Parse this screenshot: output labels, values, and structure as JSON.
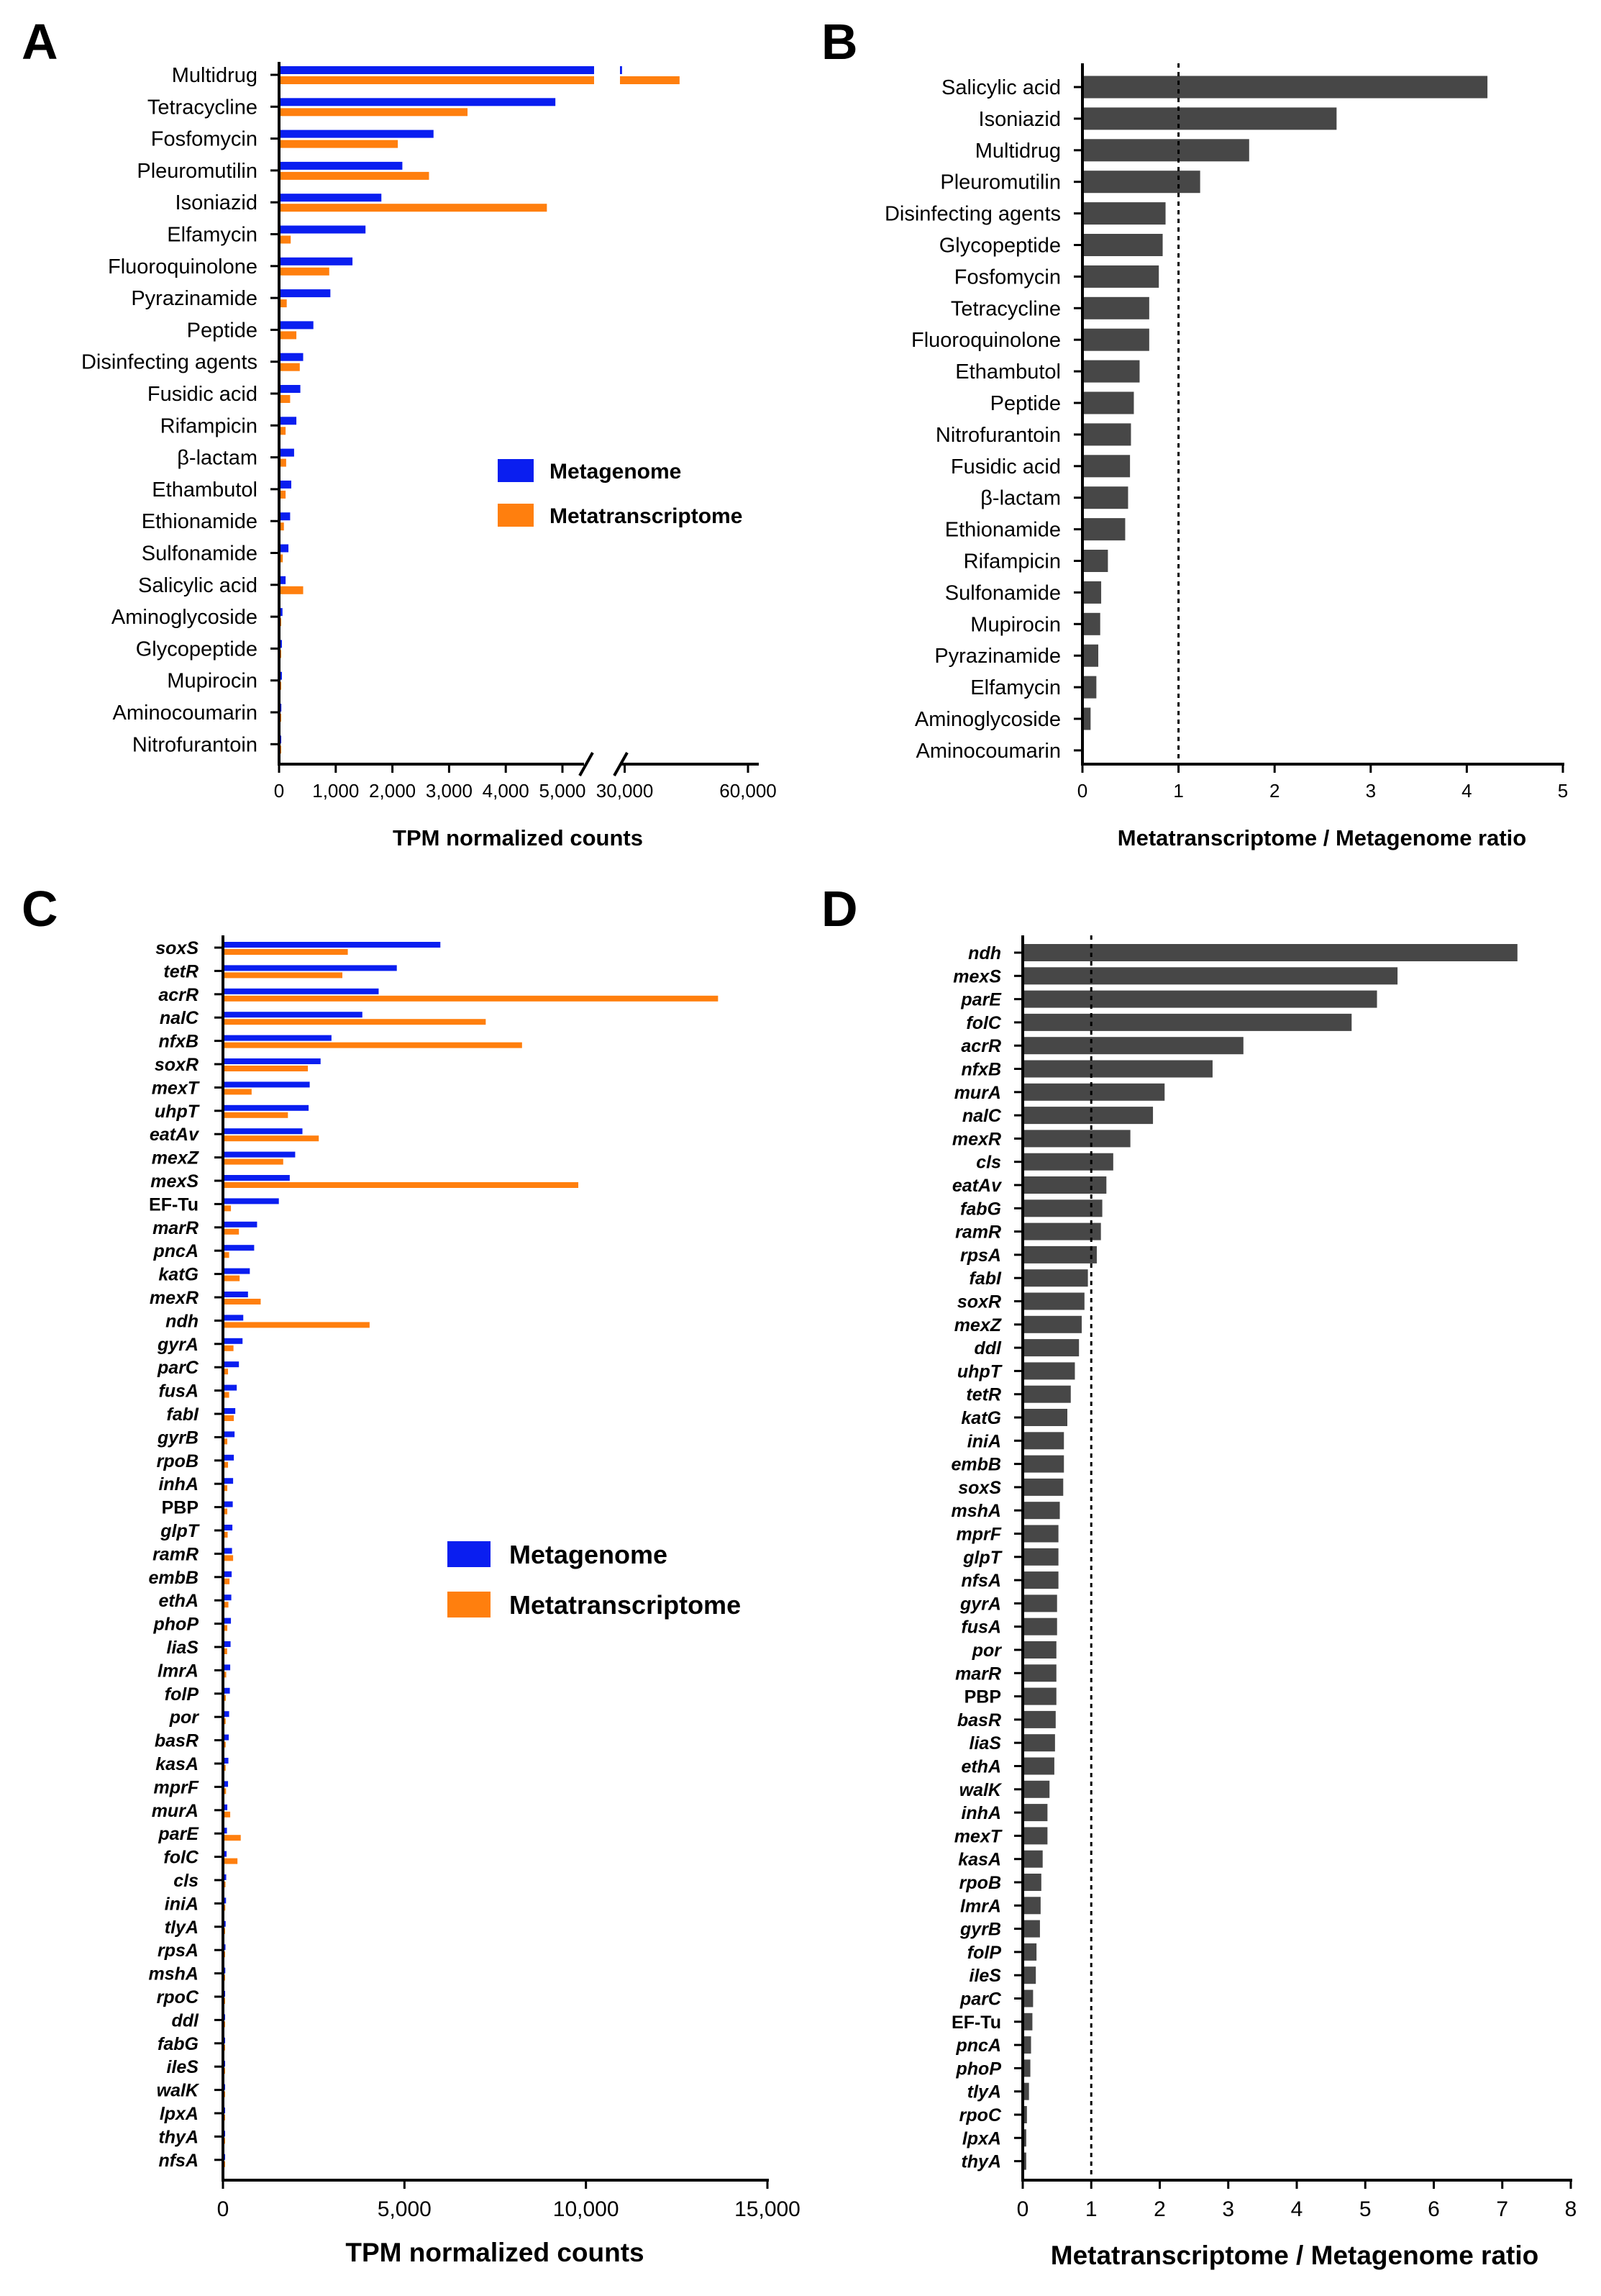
{
  "colors": {
    "metagenome": "#0a1ef0",
    "metatranscriptome": "#ff7f0e",
    "ratio_bar": "#474747",
    "axis": "#000000"
  },
  "chart_data": [
    {
      "panel": "A",
      "type": "bar",
      "orientation": "horizontal",
      "xlabel": "TPM normalized counts",
      "xlim_segments": [
        [
          0,
          5000
        ],
        [
          25000,
          60000
        ]
      ],
      "ticks": [
        "0",
        "1,000",
        "2,000",
        "3,000",
        "4,000",
        "5,000",
        "30,000",
        "60,000"
      ],
      "legend": {
        "placement": "right",
        "entries": [
          "Metagenome",
          "Metatranscriptome"
        ]
      },
      "categories": [
        "Multidrug",
        "Tetracycline",
        "Fosfomycin",
        "Pleuromutilin",
        "Isoniazid",
        "Elfamycin",
        "Fluoroquinolone",
        "Pyrazinamide",
        "Peptide",
        "Disinfecting agents",
        "Fusidic acid",
        "Rifampicin",
        "β-lactam",
        "Ethambutol",
        "Ethionamide",
        "Sulfonamide",
        "Salicylic acid",
        "Aminoglycoside",
        "Glycopeptide",
        "Mupirocin",
        "Aminocoumarin",
        "Nitrofurantoin"
      ],
      "series": [
        {
          "name": "Metagenome",
          "values": [
            29000,
            4850,
            2700,
            2150,
            1780,
            1500,
            1270,
            880,
            580,
            400,
            350,
            280,
            240,
            190,
            170,
            140,
            90,
            35,
            25,
            25,
            15,
            10
          ]
        },
        {
          "name": "Metatranscriptome",
          "values": [
            43000,
            3300,
            2070,
            2620,
            4700,
            180,
            860,
            110,
            280,
            340,
            170,
            90,
            100,
            90,
            60,
            40,
            400,
            10,
            8,
            8,
            4,
            2
          ]
        }
      ]
    },
    {
      "panel": "B",
      "type": "bar",
      "orientation": "horizontal",
      "xlabel": "Metatranscriptome / Metagenome ratio",
      "xlim": [
        0,
        5
      ],
      "ticks": [
        "0",
        "1",
        "2",
        "3",
        "4",
        "5"
      ],
      "reference_line": 1,
      "categories": [
        "Salicylic acid",
        "Isoniazid",
        "Multidrug",
        "Pleuromutilin",
        "Disinfecting agents",
        "Glycopeptide",
        "Fosfomycin",
        "Tetracycline",
        "Fluoroquinolone",
        "Ethambutol",
        "Peptide",
        "Nitrofurantoin",
        "Fusidic acid",
        "β-lactam",
        "Ethionamide",
        "Rifampicin",
        "Sulfonamide",
        "Mupirocin",
        "Pyrazinamide",
        "Elfamycin",
        "Aminoglycoside",
        "Aminocoumarin"
      ],
      "values": [
        4.2,
        2.63,
        1.72,
        1.21,
        0.85,
        0.82,
        0.78,
        0.68,
        0.68,
        0.58,
        0.52,
        0.49,
        0.48,
        0.46,
        0.43,
        0.25,
        0.18,
        0.17,
        0.15,
        0.13,
        0.07,
        0.0
      ]
    },
    {
      "panel": "C",
      "type": "bar",
      "orientation": "horizontal",
      "xlabel": "TPM normalized counts",
      "xlim": [
        0,
        15000
      ],
      "ticks": [
        "0",
        "5,000",
        "10,000",
        "15,000"
      ],
      "legend": {
        "placement": "center",
        "entries": [
          "Metagenome",
          "Metatranscriptome"
        ]
      },
      "categories": [
        "soxS",
        "tetR",
        "acrR",
        "nalC",
        "nfxB",
        "soxR",
        "mexT",
        "uhpT",
        "eatAv",
        "mexZ",
        "mexS",
        "EF-Tu",
        "marR",
        "pncA",
        "katG",
        "mexR",
        "ndh",
        "gyrA",
        "parC",
        "fusA",
        "fabI",
        "gyrB",
        "rpoB",
        "inhA",
        "PBP",
        "glpT",
        "ramR",
        "embB",
        "ethA",
        "phoP",
        "liaS",
        "lmrA",
        "folP",
        "por",
        "basR",
        "kasA",
        "mprF",
        "murA",
        "parE",
        "folC",
        "cls",
        "iniA",
        "tlyA",
        "rpsA",
        "mshA",
        "rpoC",
        "ddl",
        "fabG",
        "ileS",
        "walK",
        "lpxA",
        "thyA",
        "nfsA"
      ],
      "upright_labels": [
        "EF-Tu",
        "PBP"
      ],
      "series": [
        {
          "name": "Metagenome",
          "values": [
            5950,
            4750,
            4250,
            3800,
            2950,
            2650,
            2350,
            2320,
            2150,
            1950,
            1800,
            1500,
            900,
            820,
            700,
            650,
            520,
            500,
            400,
            340,
            300,
            280,
            260,
            240,
            230,
            220,
            210,
            200,
            190,
            180,
            170,
            160,
            150,
            130,
            120,
            110,
            100,
            80,
            70,
            60,
            50,
            45,
            35,
            30,
            25,
            20,
            15,
            12,
            10,
            8,
            6,
            5,
            4
          ]
        },
        {
          "name": "Metatranscriptome",
          "values": [
            3400,
            3250,
            13600,
            7200,
            8200,
            2300,
            750,
            1750,
            2600,
            1620,
            9750,
            180,
            400,
            130,
            420,
            1000,
            4000,
            250,
            100,
            130,
            260,
            80,
            100,
            80,
            80,
            90,
            240,
            140,
            110,
            80,
            75,
            50,
            40,
            35,
            35,
            35,
            45,
            160,
            450,
            360,
            30,
            25,
            15,
            15,
            10,
            10,
            8,
            6,
            4,
            3,
            2,
            2,
            1
          ]
        }
      ]
    },
    {
      "panel": "D",
      "type": "bar",
      "orientation": "horizontal",
      "xlabel": "Metatranscriptome / Metagenome ratio",
      "xlim": [
        0,
        8
      ],
      "ticks": [
        "0",
        "1",
        "2",
        "3",
        "4",
        "5",
        "6",
        "7",
        "8"
      ],
      "reference_line": 1,
      "categories": [
        "ndh",
        "mexS",
        "parE",
        "folC",
        "acrR",
        "nfxB",
        "murA",
        "nalC",
        "mexR",
        "cls",
        "eatAv",
        "fabG",
        "ramR",
        "rpsA",
        "fabI",
        "soxR",
        "mexZ",
        "ddl",
        "uhpT",
        "tetR",
        "katG",
        "iniA",
        "embB",
        "soxS",
        "mshA",
        "mprF",
        "glpT",
        "nfsA",
        "gyrA",
        "fusA",
        "por",
        "marR",
        "PBP",
        "basR",
        "liaS",
        "ethA",
        "walK",
        "inhA",
        "mexT",
        "kasA",
        "rpoB",
        "lmrA",
        "gyrB",
        "folP",
        "ileS",
        "parC",
        "EF-Tu",
        "pncA",
        "phoP",
        "tlyA",
        "rpoC",
        "lpxA",
        "thyA"
      ],
      "upright_labels": [
        "EF-Tu",
        "PBP"
      ],
      "values": [
        7.2,
        5.45,
        5.15,
        4.78,
        3.2,
        2.75,
        2.05,
        1.88,
        1.55,
        1.3,
        1.2,
        1.14,
        1.12,
        1.06,
        0.93,
        0.88,
        0.84,
        0.8,
        0.74,
        0.68,
        0.63,
        0.58,
        0.58,
        0.57,
        0.52,
        0.5,
        0.5,
        0.5,
        0.48,
        0.48,
        0.47,
        0.47,
        0.47,
        0.46,
        0.45,
        0.44,
        0.37,
        0.34,
        0.34,
        0.27,
        0.25,
        0.24,
        0.23,
        0.18,
        0.17,
        0.13,
        0.12,
        0.1,
        0.09,
        0.07,
        0.04,
        0.03,
        0.03
      ]
    }
  ],
  "panel_labels": [
    "A",
    "B",
    "C",
    "D"
  ]
}
